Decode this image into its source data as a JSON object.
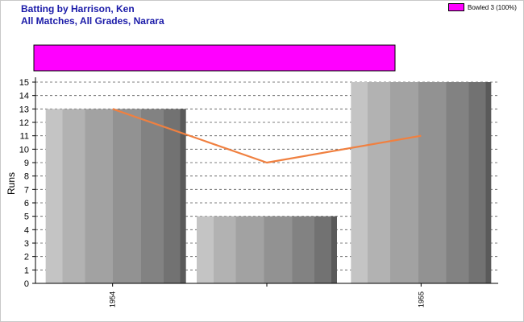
{
  "title_line1": "Batting by Harrison, Ken",
  "title_line2": "All Matches, All Grades, Narara",
  "legend": {
    "label": "Bowled 3 (100%)",
    "color": "#ff00ff"
  },
  "chart_data": {
    "type": "bar",
    "title": "Batting by Harrison, Ken",
    "subtitle": "All Matches, All Grades, Narara",
    "ylabel": "Runs",
    "xlabel": "",
    "ylim": [
      0,
      15
    ],
    "yticks": [
      0,
      1,
      2,
      3,
      4,
      5,
      6,
      7,
      8,
      9,
      10,
      11,
      12,
      13,
      14,
      15
    ],
    "categories": [
      "1954",
      "",
      "1955"
    ],
    "series": [
      {
        "type": "bar",
        "values": [
          13,
          5,
          15
        ],
        "color": "#9a9a9a"
      },
      {
        "type": "line",
        "values": [
          13,
          9,
          11
        ],
        "color": "#f08040"
      }
    ],
    "dismissal_bar": {
      "label": "Bowled 3 (100%)",
      "percent": 100,
      "color": "#ff00ff"
    },
    "grid": true,
    "legend_position": "top-right"
  }
}
